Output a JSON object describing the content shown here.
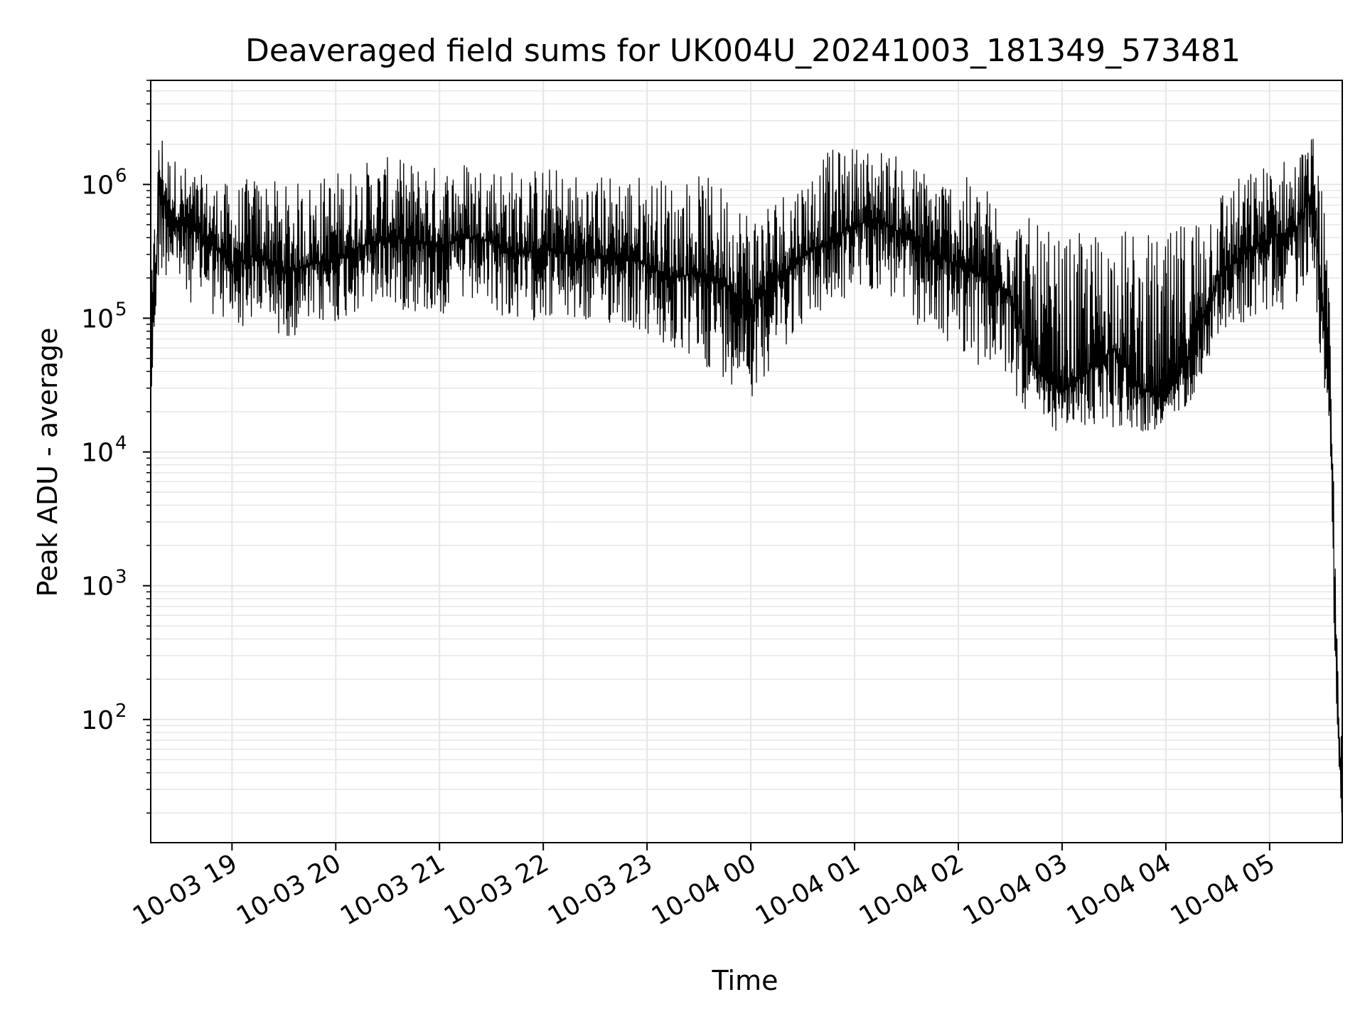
{
  "chart_data": {
    "type": "line",
    "title": "Deaveraged field sums for UK004U_20241003_181349_573481",
    "xlabel": "Time",
    "ylabel": "Peak ADU - average",
    "y_scale": "log",
    "grid": true,
    "grid_color": "#e6e6e6",
    "line_color": "#000000",
    "xlim": [
      "2024-10-03 18:13",
      "2024-10-04 05:42"
    ],
    "ylim": [
      12,
      6000000
    ],
    "x_ticks": [
      {
        "label": "10-03 19",
        "time": "2024-10-03 19:00"
      },
      {
        "label": "10-03 20",
        "time": "2024-10-03 20:00"
      },
      {
        "label": "10-03 21",
        "time": "2024-10-03 21:00"
      },
      {
        "label": "10-03 22",
        "time": "2024-10-03 22:00"
      },
      {
        "label": "10-03 23",
        "time": "2024-10-03 23:00"
      },
      {
        "label": "10-04 00",
        "time": "2024-10-04 00:00"
      },
      {
        "label": "10-04 01",
        "time": "2024-10-04 01:00"
      },
      {
        "label": "10-04 02",
        "time": "2024-10-04 02:00"
      },
      {
        "label": "10-04 03",
        "time": "2024-10-04 03:00"
      },
      {
        "label": "10-04 04",
        "time": "2024-10-04 04:00"
      },
      {
        "label": "10-04 05",
        "time": "2024-10-04 05:00"
      }
    ],
    "y_ticks": [
      {
        "base": "10",
        "exp": "2",
        "value": 100
      },
      {
        "base": "10",
        "exp": "3",
        "value": 1000
      },
      {
        "base": "10",
        "exp": "4",
        "value": 10000
      },
      {
        "base": "10",
        "exp": "5",
        "value": 100000
      },
      {
        "base": "10",
        "exp": "6",
        "value": 1000000
      }
    ],
    "series": [
      {
        "x": [
          "2024-10-03 18:13",
          "2024-10-03 18:15",
          "2024-10-03 18:18",
          "2024-10-03 18:22",
          "2024-10-03 18:30",
          "2024-10-03 18:40",
          "2024-10-03 18:50",
          "2024-10-03 19:00",
          "2024-10-03 19:15",
          "2024-10-03 19:30",
          "2024-10-03 19:45",
          "2024-10-03 20:00",
          "2024-10-03 20:15",
          "2024-10-03 20:30",
          "2024-10-03 20:45",
          "2024-10-03 21:00",
          "2024-10-03 21:15",
          "2024-10-03 21:30",
          "2024-10-03 21:45",
          "2024-10-03 22:00",
          "2024-10-03 22:15",
          "2024-10-03 22:30",
          "2024-10-03 22:45",
          "2024-10-03 23:00",
          "2024-10-03 23:15",
          "2024-10-03 23:30",
          "2024-10-03 23:45",
          "2024-10-04 00:00",
          "2024-10-04 00:15",
          "2024-10-04 00:30",
          "2024-10-04 00:45",
          "2024-10-04 01:00",
          "2024-10-04 01:15",
          "2024-10-04 01:30",
          "2024-10-04 01:45",
          "2024-10-04 02:00",
          "2024-10-04 02:15",
          "2024-10-04 02:30",
          "2024-10-04 02:45",
          "2024-10-04 03:00",
          "2024-10-04 03:15",
          "2024-10-04 03:30",
          "2024-10-04 03:45",
          "2024-10-04 04:00",
          "2024-10-04 04:15",
          "2024-10-04 04:30",
          "2024-10-04 04:45",
          "2024-10-04 05:00",
          "2024-10-04 05:15",
          "2024-10-04 05:25",
          "2024-10-04 05:30",
          "2024-10-04 05:35",
          "2024-10-04 05:38",
          "2024-10-04 05:40",
          "2024-10-04 05:42"
        ],
        "y": [
          30000,
          150000,
          900000,
          700000,
          500000,
          450000,
          350000,
          250000,
          300000,
          220000,
          250000,
          280000,
          350000,
          400000,
          380000,
          350000,
          400000,
          380000,
          300000,
          330000,
          300000,
          280000,
          300000,
          250000,
          200000,
          220000,
          180000,
          120000,
          200000,
          300000,
          380000,
          500000,
          550000,
          400000,
          300000,
          250000,
          200000,
          150000,
          40000,
          28000,
          40000,
          60000,
          30000,
          25000,
          60000,
          200000,
          300000,
          400000,
          450000,
          900000,
          150000,
          20000,
          400,
          80,
          20
        ],
        "band_low": [
          15000,
          60000,
          200000,
          200000,
          150000,
          120000,
          100000,
          80000,
          90000,
          70000,
          80000,
          90000,
          110000,
          120000,
          110000,
          100000,
          120000,
          110000,
          90000,
          100000,
          90000,
          85000,
          90000,
          70000,
          50000,
          45000,
          35000,
          25000,
          50000,
          90000,
          110000,
          150000,
          160000,
          100000,
          70000,
          60000,
          40000,
          30000,
          15000,
          14000,
          15000,
          15000,
          14000,
          14000,
          25000,
          70000,
          90000,
          110000,
          120000,
          250000,
          40000,
          9000,
          200,
          40,
          12
        ],
        "band_high": [
          160000,
          700000,
          3300000,
          1800000,
          1500000,
          1200000,
          1100000,
          1000000,
          1200000,
          1000000,
          1100000,
          1300000,
          1500000,
          1600000,
          1500000,
          1400000,
          1600000,
          1500000,
          1300000,
          1400000,
          1300000,
          1200000,
          1300000,
          1200000,
          1100000,
          1200000,
          1000000,
          700000,
          900000,
          1200000,
          1800000,
          2000000,
          1900000,
          1500000,
          1300000,
          1200000,
          1000000,
          800000,
          500000,
          400000,
          450000,
          500000,
          450000,
          400000,
          700000,
          1000000,
          1200000,
          1500000,
          1700000,
          2400000,
          1200000,
          100000,
          1200,
          300,
          30
        ]
      }
    ]
  }
}
